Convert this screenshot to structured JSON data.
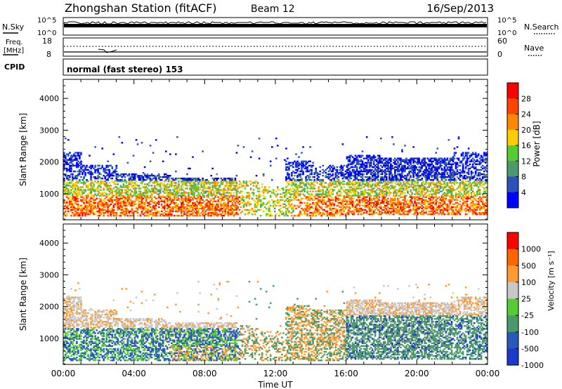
{
  "header": {
    "station": "Zhongshan Station (fitACF)",
    "beam": "Beam 12",
    "date": "16/Sep/2013"
  },
  "top_panels": {
    "nsky_label": "N.Sky",
    "nsky_ticks": [
      "10^5",
      "10^0"
    ],
    "nsearch_label": "N.Search",
    "nsearch_ticks": [
      "10^5",
      "10^0"
    ],
    "freq_label_line1": "Freq.",
    "freq_label_line2": "[MHz]",
    "freq_ticks": [
      "18",
      "8"
    ],
    "nave_label": "Nave",
    "nave_ticks": [
      "60",
      "0"
    ],
    "cpid_label": "CPID",
    "cpid_text": "normal (fast stereo) 153"
  },
  "colors": {
    "power_scale": [
      "#0000ff",
      "#2a52b8",
      "#4c9a6c",
      "#55cc33",
      "#ffcc00",
      "#ff8800",
      "#ff4400",
      "#ff0000"
    ],
    "velocity_scale": [
      "#1a3acc",
      "#2a5ab8",
      "#4c9a6c",
      "#55cc33",
      "#c8c8c8",
      "#ff9a33",
      "#ff6600",
      "#ff0000"
    ]
  },
  "chart_data": [
    {
      "type": "heatmap",
      "name": "power",
      "ylabel": "Slant Range [km]",
      "yticks": [
        "4000",
        "3000",
        "2000",
        "1000"
      ],
      "ylim": [
        180,
        4600
      ],
      "xlabel": "Time UT",
      "xticks": [
        "00:00",
        "04:00",
        "08:00",
        "12:00",
        "16:00",
        "20:00",
        "00:00"
      ],
      "colorbar_label": "Power [dB]",
      "colorbar_ticks": [
        "28",
        "24",
        "20",
        "16",
        "12",
        "8",
        "4"
      ],
      "colorbar_range": [
        0,
        32
      ]
    },
    {
      "type": "heatmap",
      "name": "velocity",
      "ylabel": "Slant Range [km]",
      "yticks": [
        "4000",
        "3000",
        "2000",
        "1000"
      ],
      "ylim": [
        180,
        4600
      ],
      "xlabel": "Time UT",
      "xticks": [
        "00:00",
        "04:00",
        "08:00",
        "12:00",
        "16:00",
        "20:00",
        "00:00"
      ],
      "colorbar_label": "Velocity [m s⁻¹]",
      "colorbar_ticks": [
        "1000",
        "500",
        "100",
        "25",
        "-25",
        "-100",
        "-500",
        "-1000"
      ]
    }
  ]
}
